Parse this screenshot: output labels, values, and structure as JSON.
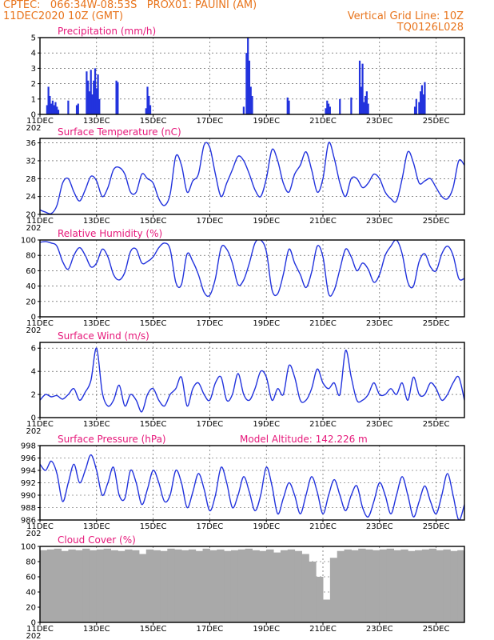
{
  "header": {
    "line1": "CPTEC:   066:34W-08:53S   PROX01: PAUINI (AM)",
    "line2": "11DEC2020 10Z (GMT)",
    "grid_note": "Vertical Grid Line: 10Z",
    "run_code": "TQ0126L028"
  },
  "colors": {
    "header": "#e8741c",
    "title": "#e6187a",
    "series": "#2233dd",
    "bars": "#2233dd",
    "cloud": "#a9a9a9"
  },
  "x_axis": {
    "labels": [
      "11DEC",
      "13DEC",
      "15DEC",
      "17DEC",
      "19DEC",
      "21DEC",
      "23DEC",
      "25DEC"
    ],
    "label_days": [
      0,
      2,
      4,
      6,
      8,
      10,
      12,
      14
    ],
    "start": "2020-12-11T10Z",
    "end": "2020-12-26T10Z",
    "year_fragment": "202"
  },
  "chart_data": [
    {
      "type": "bar",
      "title": "Precipitation (mm/h)",
      "ylim": [
        0,
        5
      ],
      "yticks": [
        "0",
        "1",
        "2",
        "3",
        "4",
        "5"
      ],
      "grid": true,
      "x": [
        0.25,
        0.3,
        0.35,
        0.4,
        0.45,
        0.5,
        0.55,
        0.6,
        0.65,
        1.0,
        1.3,
        1.35,
        1.65,
        1.7,
        1.75,
        1.8,
        1.85,
        1.9,
        1.95,
        2.0,
        2.05,
        2.1,
        2.7,
        2.75,
        3.75,
        3.8,
        3.85,
        3.9,
        7.2,
        7.3,
        7.35,
        7.4,
        7.45,
        7.5,
        8.75,
        8.8,
        10.1,
        10.15,
        10.2,
        10.25,
        10.6,
        11.0,
        11.3,
        11.35,
        11.4,
        11.45,
        11.5,
        11.55,
        11.6,
        13.25,
        13.3,
        13.4,
        13.45,
        13.5,
        13.55,
        13.6
      ],
      "values": [
        0.6,
        1.8,
        1.2,
        0.7,
        0.9,
        0.6,
        0.8,
        0.5,
        0.3,
        0.9,
        0.6,
        0.7,
        2.8,
        2.2,
        1.5,
        2.9,
        1.3,
        2.2,
        3.0,
        1.7,
        2.6,
        1.0,
        2.2,
        2.1,
        0.4,
        1.8,
        1.2,
        0.6,
        0.5,
        4.0,
        5.0,
        3.5,
        1.8,
        1.2,
        1.1,
        0.9,
        0.4,
        0.9,
        0.7,
        0.5,
        1.0,
        1.1,
        3.5,
        1.8,
        3.3,
        0.8,
        1.2,
        1.5,
        0.7,
        0.5,
        1.0,
        0.8,
        1.5,
        1.9,
        1.3,
        2.1
      ]
    },
    {
      "type": "line",
      "title": "Surface Temperature (nC)",
      "ylim": [
        20,
        37
      ],
      "yticks": [
        "20",
        "24",
        "28",
        "32",
        "36"
      ],
      "grid": true,
      "x": [
        0,
        0.2,
        0.4,
        0.6,
        0.8,
        1.0,
        1.2,
        1.4,
        1.6,
        1.8,
        2.0,
        2.2,
        2.4,
        2.6,
        2.8,
        3.0,
        3.2,
        3.4,
        3.6,
        3.8,
        4.0,
        4.2,
        4.4,
        4.6,
        4.8,
        5.0,
        5.2,
        5.4,
        5.6,
        5.8,
        6.0,
        6.2,
        6.4,
        6.6,
        6.8,
        7.0,
        7.2,
        7.4,
        7.6,
        7.8,
        8.0,
        8.2,
        8.4,
        8.6,
        8.8,
        9.0,
        9.2,
        9.4,
        9.6,
        9.8,
        10.0,
        10.2,
        10.4,
        10.6,
        10.8,
        11.0,
        11.2,
        11.4,
        11.6,
        11.8,
        12.0,
        12.2,
        12.4,
        12.6,
        12.8,
        13.0,
        13.2,
        13.4,
        13.6,
        13.8,
        14.0,
        14.2,
        14.4,
        14.6,
        14.8,
        15.0
      ],
      "values": [
        21,
        20.5,
        20.2,
        22,
        27,
        28,
        25,
        23,
        25.5,
        28.5,
        27.5,
        24,
        26,
        30,
        30.5,
        29,
        25,
        25,
        29,
        28,
        27,
        23.5,
        22,
        24.5,
        33,
        31,
        25,
        27.5,
        29,
        35.5,
        35,
        29,
        24,
        27,
        30,
        33,
        32,
        29,
        25.5,
        24,
        28,
        34.5,
        32,
        27,
        25,
        29,
        31,
        34,
        30,
        25,
        28,
        36,
        32.5,
        27,
        24,
        28,
        28,
        26,
        27,
        29,
        28,
        25,
        23.5,
        23,
        28,
        34,
        31.5,
        27,
        27.5,
        28,
        26,
        24,
        23.5,
        26,
        32,
        31
      ]
    },
    {
      "type": "line",
      "title": "Relative Humidity (%)",
      "ylim": [
        0,
        100
      ],
      "yticks": [
        "0",
        "20",
        "40",
        "60",
        "80",
        "100"
      ],
      "grid": true,
      "x": [
        0,
        0.2,
        0.4,
        0.6,
        0.8,
        1.0,
        1.2,
        1.4,
        1.6,
        1.8,
        2.0,
        2.2,
        2.4,
        2.6,
        2.8,
        3.0,
        3.2,
        3.4,
        3.6,
        3.8,
        4.0,
        4.2,
        4.4,
        4.6,
        4.8,
        5.0,
        5.2,
        5.4,
        5.6,
        5.8,
        6.0,
        6.2,
        6.4,
        6.6,
        6.8,
        7.0,
        7.2,
        7.4,
        7.6,
        7.8,
        8.0,
        8.2,
        8.4,
        8.6,
        8.8,
        9.0,
        9.2,
        9.4,
        9.6,
        9.8,
        10.0,
        10.2,
        10.4,
        10.6,
        10.8,
        11.0,
        11.2,
        11.4,
        11.6,
        11.8,
        12.0,
        12.2,
        12.4,
        12.6,
        12.8,
        13.0,
        13.2,
        13.4,
        13.6,
        13.8,
        14.0,
        14.2,
        14.4,
        14.6,
        14.8,
        15.0
      ],
      "values": [
        97,
        98,
        96,
        92,
        72,
        62,
        80,
        90,
        80,
        65,
        70,
        88,
        78,
        55,
        48,
        58,
        85,
        88,
        70,
        72,
        78,
        90,
        96,
        88,
        45,
        42,
        82,
        72,
        55,
        32,
        28,
        50,
        90,
        88,
        70,
        42,
        48,
        70,
        96,
        100,
        85,
        35,
        30,
        55,
        88,
        70,
        55,
        38,
        58,
        92,
        78,
        30,
        35,
        62,
        88,
        78,
        60,
        70,
        62,
        45,
        55,
        80,
        92,
        100,
        82,
        45,
        40,
        72,
        82,
        65,
        60,
        82,
        92,
        80,
        50,
        50
      ]
    },
    {
      "type": "line",
      "title": "Surface Wind (m/s)",
      "ylim": [
        0,
        6.5
      ],
      "yticks": [
        "0",
        "2",
        "4",
        "6"
      ],
      "grid": true,
      "x": [
        0,
        0.2,
        0.4,
        0.6,
        0.8,
        1.0,
        1.2,
        1.4,
        1.6,
        1.8,
        2.0,
        2.2,
        2.4,
        2.6,
        2.8,
        3.0,
        3.2,
        3.4,
        3.6,
        3.8,
        4.0,
        4.2,
        4.4,
        4.6,
        4.8,
        5.0,
        5.2,
        5.4,
        5.6,
        5.8,
        6.0,
        6.2,
        6.4,
        6.6,
        6.8,
        7.0,
        7.2,
        7.4,
        7.6,
        7.8,
        8.0,
        8.2,
        8.4,
        8.6,
        8.8,
        9.0,
        9.2,
        9.4,
        9.6,
        9.8,
        10.0,
        10.2,
        10.4,
        10.6,
        10.8,
        11.0,
        11.2,
        11.4,
        11.6,
        11.8,
        12.0,
        12.2,
        12.4,
        12.6,
        12.8,
        13.0,
        13.2,
        13.4,
        13.6,
        13.8,
        14.0,
        14.2,
        14.4,
        14.6,
        14.8,
        15.0
      ],
      "values": [
        1.5,
        2.0,
        1.8,
        1.9,
        1.6,
        2.0,
        2.5,
        1.5,
        2.2,
        3.2,
        6.0,
        2.2,
        1.0,
        1.5,
        2.8,
        1.0,
        2.0,
        1.5,
        0.5,
        2.0,
        2.5,
        1.5,
        1.0,
        2.0,
        2.5,
        3.5,
        1.0,
        2.5,
        3.0,
        2.0,
        1.5,
        3.0,
        3.5,
        1.5,
        2.0,
        3.8,
        2.0,
        1.5,
        2.5,
        4.0,
        3.5,
        1.5,
        2.5,
        2.0,
        4.5,
        3.5,
        1.5,
        1.5,
        2.5,
        4.2,
        3.0,
        2.5,
        3.0,
        2.0,
        5.8,
        3.5,
        1.5,
        1.5,
        2.0,
        3.0,
        2.0,
        2.0,
        2.5,
        2.0,
        3.0,
        1.5,
        3.5,
        2.0,
        2.0,
        3.0,
        2.5,
        1.5,
        2.0,
        3.0,
        3.5,
        1.5
      ]
    },
    {
      "type": "line",
      "title": "Surface Pressure (hPa)",
      "annotation": "Model Altitude: 142.226  m",
      "ylim": [
        986,
        998
      ],
      "yticks": [
        "986",
        "988",
        "990",
        "992",
        "994",
        "996",
        "998"
      ],
      "grid": true,
      "x": [
        0,
        0.2,
        0.4,
        0.6,
        0.8,
        1.0,
        1.2,
        1.4,
        1.6,
        1.8,
        2.0,
        2.2,
        2.4,
        2.6,
        2.8,
        3.0,
        3.2,
        3.4,
        3.6,
        3.8,
        4.0,
        4.2,
        4.4,
        4.6,
        4.8,
        5.0,
        5.2,
        5.4,
        5.6,
        5.8,
        6.0,
        6.2,
        6.4,
        6.6,
        6.8,
        7.0,
        7.2,
        7.4,
        7.6,
        7.8,
        8.0,
        8.2,
        8.4,
        8.6,
        8.8,
        9.0,
        9.2,
        9.4,
        9.6,
        9.8,
        10.0,
        10.2,
        10.4,
        10.6,
        10.8,
        11.0,
        11.2,
        11.4,
        11.6,
        11.8,
        12.0,
        12.2,
        12.4,
        12.6,
        12.8,
        13.0,
        13.2,
        13.4,
        13.6,
        13.8,
        14.0,
        14.2,
        14.4,
        14.6,
        14.8,
        15.0
      ],
      "values": [
        995,
        994,
        995.5,
        993.5,
        989,
        992,
        995,
        992,
        994,
        996.5,
        994,
        990,
        992,
        994.5,
        990,
        989.5,
        994,
        992,
        988.5,
        991,
        994,
        992,
        989,
        990,
        994,
        992,
        988,
        990.5,
        993.5,
        991,
        987.5,
        990,
        994.5,
        992,
        988,
        990,
        993,
        990.5,
        987.5,
        990,
        994.5,
        991.5,
        987,
        989.5,
        992,
        990,
        987,
        990,
        993,
        990.5,
        987,
        990,
        992.5,
        990,
        987.5,
        990,
        991.5,
        988,
        986.5,
        989,
        992,
        990,
        987,
        990,
        993,
        990,
        986.5,
        989,
        991.5,
        989,
        987,
        990,
        993.5,
        990,
        986,
        988.5
      ]
    },
    {
      "type": "bar",
      "title": "Cloud Cover (%)",
      "ylim": [
        0,
        100
      ],
      "yticks": [
        "0",
        "20",
        "40",
        "60",
        "80",
        "100"
      ],
      "grid": true,
      "x": [
        0,
        0.25,
        0.5,
        0.75,
        1.0,
        1.25,
        1.5,
        1.75,
        2.0,
        2.25,
        2.5,
        2.75,
        3.0,
        3.25,
        3.5,
        3.75,
        4.0,
        4.25,
        4.5,
        4.75,
        5.0,
        5.25,
        5.5,
        5.75,
        5.85,
        6.0,
        6.25,
        6.5,
        6.75,
        7.0,
        7.25,
        7.5,
        7.75,
        8.0,
        8.25,
        8.5,
        8.75,
        9.0,
        9.25,
        9.5,
        9.75,
        10.0,
        10.25,
        10.5,
        10.75,
        11.0,
        11.25,
        11.5,
        11.75,
        12.0,
        12.25,
        12.5,
        12.75,
        13.0,
        13.25,
        13.5,
        13.75,
        14.0,
        14.25,
        14.5,
        14.75
      ],
      "values": [
        95,
        96,
        97,
        94,
        96,
        95,
        97,
        95,
        96,
        97,
        95,
        94,
        96,
        95,
        90,
        96,
        95,
        94,
        97,
        96,
        95,
        96,
        94,
        97,
        2,
        95,
        96,
        94,
        95,
        96,
        97,
        95,
        94,
        96,
        92,
        95,
        96,
        94,
        90,
        80,
        60,
        30,
        85,
        94,
        96,
        95,
        97,
        96,
        95,
        96,
        97,
        95,
        96,
        94,
        95,
        96,
        97,
        95,
        96,
        94,
        95
      ]
    }
  ]
}
